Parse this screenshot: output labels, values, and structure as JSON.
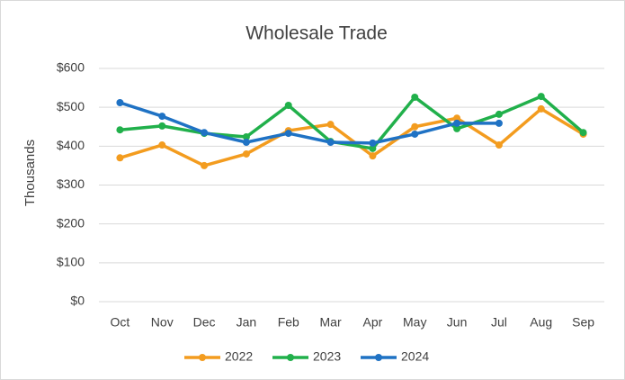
{
  "chart_data": {
    "type": "line",
    "title": "Wholesale Trade",
    "y_label": "Thousands",
    "categories": [
      "Oct",
      "Nov",
      "Dec",
      "Jan",
      "Feb",
      "Mar",
      "Apr",
      "May",
      "Jun",
      "Jul",
      "Aug",
      "Sep"
    ],
    "series": [
      {
        "name": "2022",
        "color": "#f39c1f",
        "values": [
          370,
          403,
          350,
          380,
          440,
          456,
          375,
          450,
          472,
          403,
          496,
          431
        ]
      },
      {
        "name": "2023",
        "color": "#21b04b",
        "values": [
          442,
          452,
          433,
          424,
          505,
          412,
          394,
          526,
          445,
          482,
          528,
          435
        ]
      },
      {
        "name": "2024",
        "color": "#1f72c4",
        "values": [
          512,
          477,
          435,
          410,
          433,
          410,
          408,
          431,
          459,
          459,
          null,
          null
        ]
      }
    ],
    "ylim": [
      0,
      600
    ],
    "yticks": [
      {
        "value": 0,
        "label": "$0"
      },
      {
        "value": 100,
        "label": "$100"
      },
      {
        "value": 200,
        "label": "$200"
      },
      {
        "value": 300,
        "label": "$300"
      },
      {
        "value": 400,
        "label": "$400"
      },
      {
        "value": 500,
        "label": "$500"
      },
      {
        "value": 600,
        "label": "$600"
      }
    ],
    "grid": true,
    "legend": "bottom"
  }
}
